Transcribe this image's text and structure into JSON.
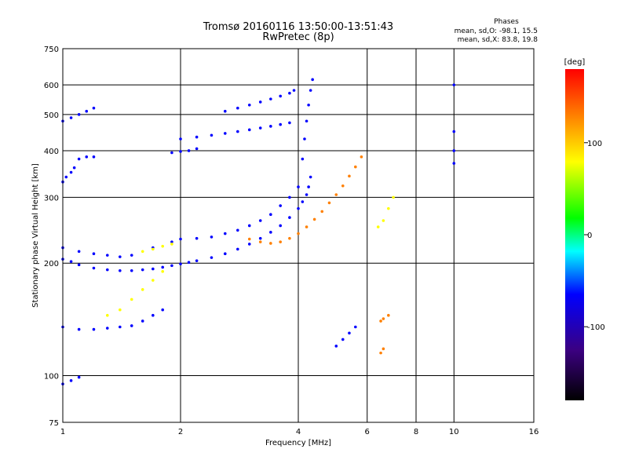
{
  "chart_data": {
    "type": "scatter",
    "title": "Tromsø 20160116 13:50:00-13:51:43",
    "subtitle": "RwPretec (8p)",
    "xlabel": "Frequency [MHz]",
    "ylabel": "Stationary phase Virtual Height [km]",
    "x_scale": "log",
    "y_scale": "log",
    "xlim": [
      1,
      16
    ],
    "ylim": [
      75,
      750
    ],
    "x_ticks": [
      "1",
      "2",
      "4",
      "6",
      "8",
      "10",
      "16"
    ],
    "x_tick_values": [
      1,
      2,
      4,
      6,
      8,
      10,
      16
    ],
    "y_ticks": [
      "750",
      "600",
      "500",
      "400",
      "300",
      "200",
      "100",
      "75"
    ],
    "y_tick_values": [
      750,
      600,
      500,
      400,
      300,
      200,
      100,
      75
    ],
    "grid": true,
    "phases": {
      "title": "Phases",
      "o_stats": "mean, sd,O: -98.1, 15.5",
      "x_stats": "mean, sd,X:  83.8, 19.8"
    },
    "colorbar": {
      "label": "[deg]",
      "range": [
        -180,
        180
      ],
      "ticks": [
        "100",
        "0",
        "-100"
      ],
      "tick_values": [
        100,
        0,
        -100
      ],
      "colors": [
        "#000000",
        "#3b0080",
        "#0000ff",
        "#00ffff",
        "#00ff00",
        "#ffff00",
        "#ff8000",
        "#ff0000"
      ]
    },
    "traces": [
      {
        "phase": -100,
        "points": [
          [
            1.0,
            205
          ],
          [
            1.05,
            202
          ],
          [
            1.1,
            198
          ],
          [
            1.2,
            194
          ],
          [
            1.3,
            192
          ],
          [
            1.4,
            191
          ],
          [
            1.5,
            191
          ],
          [
            1.6,
            192
          ],
          [
            1.7,
            193
          ],
          [
            1.8,
            195
          ],
          [
            1.9,
            197
          ],
          [
            2.0,
            199
          ],
          [
            2.1,
            201
          ],
          [
            2.2,
            203
          ],
          [
            2.4,
            207
          ],
          [
            2.6,
            212
          ],
          [
            2.8,
            218
          ],
          [
            3.0,
            225
          ],
          [
            3.2,
            233
          ],
          [
            3.4,
            242
          ],
          [
            3.6,
            252
          ],
          [
            3.8,
            265
          ],
          [
            4.0,
            280
          ],
          [
            4.1,
            292
          ],
          [
            4.2,
            305
          ],
          [
            4.25,
            320
          ],
          [
            4.3,
            340
          ]
        ]
      },
      {
        "phase": -100,
        "points": [
          [
            1.0,
            220
          ],
          [
            1.1,
            215
          ],
          [
            1.2,
            212
          ],
          [
            1.3,
            210
          ],
          [
            1.4,
            208
          ],
          [
            1.5,
            210
          ],
          [
            1.7,
            220
          ],
          [
            1.9,
            228
          ],
          [
            2.0,
            232
          ],
          [
            2.2,
            233
          ],
          [
            2.4,
            235
          ],
          [
            2.6,
            240
          ],
          [
            2.8,
            245
          ],
          [
            3.0,
            252
          ],
          [
            3.2,
            260
          ],
          [
            3.4,
            270
          ],
          [
            3.6,
            285
          ],
          [
            3.8,
            300
          ],
          [
            4.0,
            320
          ]
        ]
      },
      {
        "phase": 120,
        "points": [
          [
            3.0,
            232
          ],
          [
            3.2,
            228
          ],
          [
            3.4,
            226
          ],
          [
            3.6,
            228
          ],
          [
            3.8,
            233
          ],
          [
            4.0,
            240
          ],
          [
            4.2,
            250
          ],
          [
            4.4,
            262
          ],
          [
            4.6,
            275
          ],
          [
            4.8,
            290
          ],
          [
            5.0,
            305
          ],
          [
            5.2,
            322
          ],
          [
            5.4,
            342
          ],
          [
            5.6,
            362
          ],
          [
            5.8,
            385
          ]
        ]
      },
      {
        "phase": -100,
        "points": [
          [
            1.0,
            135
          ],
          [
            1.1,
            133
          ],
          [
            1.2,
            133
          ],
          [
            1.3,
            134
          ],
          [
            1.4,
            135
          ],
          [
            1.5,
            136
          ],
          [
            1.6,
            140
          ],
          [
            1.7,
            145
          ],
          [
            1.8,
            150
          ]
        ]
      },
      {
        "phase": -100,
        "points": [
          [
            1.9,
            395
          ],
          [
            2.0,
            398
          ],
          [
            2.1,
            400
          ],
          [
            2.2,
            405
          ]
        ]
      },
      {
        "phase": -100,
        "points": [
          [
            2.0,
            430
          ],
          [
            2.2,
            435
          ],
          [
            2.4,
            440
          ],
          [
            2.6,
            445
          ],
          [
            2.8,
            450
          ],
          [
            3.0,
            455
          ],
          [
            3.2,
            460
          ],
          [
            3.4,
            465
          ],
          [
            3.6,
            470
          ],
          [
            3.8,
            475
          ]
        ]
      },
      {
        "phase": -100,
        "points": [
          [
            2.6,
            510
          ],
          [
            2.8,
            520
          ],
          [
            3.0,
            530
          ],
          [
            3.2,
            540
          ],
          [
            3.4,
            550
          ],
          [
            3.6,
            560
          ],
          [
            3.8,
            570
          ],
          [
            3.9,
            580
          ]
        ]
      },
      {
        "phase": -100,
        "points": [
          [
            4.1,
            380
          ],
          [
            4.15,
            430
          ],
          [
            4.2,
            480
          ],
          [
            4.25,
            530
          ],
          [
            4.3,
            580
          ],
          [
            4.35,
            620
          ]
        ]
      },
      {
        "phase": -100,
        "points": [
          [
            1.0,
            330
          ],
          [
            1.02,
            340
          ],
          [
            1.05,
            350
          ],
          [
            1.07,
            360
          ],
          [
            1.1,
            380
          ],
          [
            1.15,
            385
          ],
          [
            1.2,
            385
          ]
        ]
      },
      {
        "phase": -100,
        "points": [
          [
            1.0,
            95
          ],
          [
            1.05,
            97
          ],
          [
            1.1,
            99
          ]
        ]
      },
      {
        "phase": 60,
        "points": [
          [
            1.3,
            145
          ],
          [
            1.4,
            150
          ],
          [
            1.5,
            160
          ],
          [
            1.6,
            170
          ],
          [
            1.7,
            180
          ],
          [
            1.8,
            190
          ]
        ]
      },
      {
        "phase": 100,
        "points": [
          [
            1.6,
            215
          ],
          [
            1.7,
            218
          ],
          [
            1.8,
            222
          ],
          [
            1.9,
            225
          ]
        ]
      },
      {
        "phase": 140,
        "points": [
          [
            6.5,
            140
          ],
          [
            6.6,
            142
          ],
          [
            6.8,
            145
          ],
          [
            6.5,
            115
          ],
          [
            6.6,
            118
          ]
        ]
      },
      {
        "phase": -100,
        "points": [
          [
            5.0,
            120
          ],
          [
            5.2,
            125
          ],
          [
            5.4,
            130
          ],
          [
            5.6,
            135
          ]
        ]
      },
      {
        "phase": -100,
        "points": [
          [
            10.0,
            600
          ],
          [
            10.0,
            450
          ],
          [
            10.0,
            400
          ],
          [
            10.0,
            370
          ]
        ]
      },
      {
        "phase": 60,
        "points": [
          [
            6.4,
            250
          ],
          [
            6.6,
            260
          ],
          [
            6.8,
            280
          ],
          [
            7.0,
            300
          ]
        ]
      },
      {
        "phase": -100,
        "points": [
          [
            1.0,
            480
          ],
          [
            1.05,
            490
          ],
          [
            1.1,
            500
          ],
          [
            1.15,
            510
          ],
          [
            1.2,
            520
          ]
        ]
      }
    ]
  }
}
